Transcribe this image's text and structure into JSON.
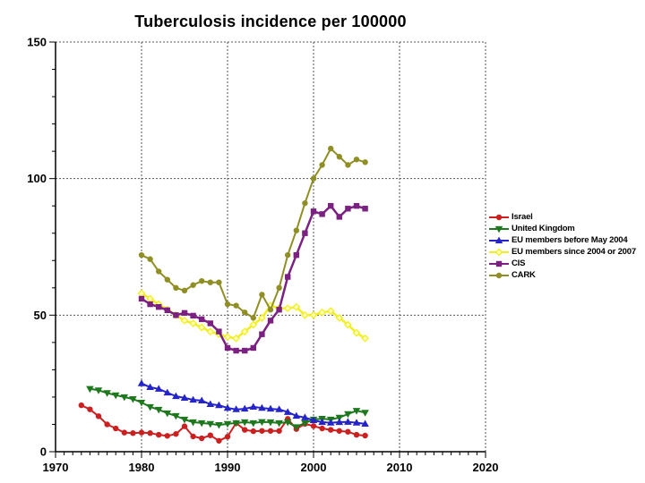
{
  "chart_data": {
    "type": "line",
    "title": "Tuberculosis incidence per 100000",
    "xlabel": "",
    "ylabel": "",
    "xlim": [
      1970,
      2020
    ],
    "ylim": [
      0,
      150
    ],
    "x_major_ticks": [
      1970,
      1980,
      1990,
      2000,
      2010,
      2020
    ],
    "y_major_ticks": [
      0,
      50,
      100,
      150
    ],
    "x_minor_step": 1,
    "y_minor_step": 10,
    "grid": "dashed-at-major-ticks",
    "legend_position": "right",
    "series": [
      {
        "name": "Israel",
        "color": "#cc2020",
        "marker": "circle",
        "line_width": 2,
        "x_start": 1973,
        "x_end": 2006,
        "values": [
          17,
          15.5,
          13,
          10,
          8.5,
          7,
          6.8,
          7,
          6.8,
          6.2,
          5.8,
          6.5,
          9.3,
          5.6,
          4.9,
          6,
          4,
          5.5,
          10.5,
          8,
          7.5,
          7.6,
          7.6,
          7.6,
          12,
          8.3,
          10.2,
          9.4,
          8.5,
          8,
          7.6,
          7.3,
          6.2,
          5.9
        ]
      },
      {
        "name": "United Kingdom",
        "color": "#1e781e",
        "marker": "triangle-down",
        "line_width": 2,
        "x_start": 1974,
        "x_end": 2006,
        "values": [
          23,
          22.5,
          21.5,
          20.7,
          20,
          19.3,
          18,
          16.4,
          15.4,
          14.1,
          13.1,
          11.8,
          10.8,
          10.5,
          10.2,
          9.8,
          10.2,
          10.5,
          10.8,
          10.5,
          10.9,
          10.8,
          10.5,
          10.8,
          9,
          10.5,
          11.8,
          12.1,
          11.8,
          12.5,
          13.8,
          15,
          14.3
        ]
      },
      {
        "name": "EU members before May 2004",
        "color": "#2424c8",
        "marker": "triangle-up",
        "line_width": 2,
        "x_start": 1980,
        "x_end": 2006,
        "values": [
          25,
          23.6,
          23,
          21.6,
          20.3,
          19.7,
          19,
          18.7,
          17.4,
          17,
          16,
          15.5,
          15.7,
          16.4,
          16,
          15.7,
          15.5,
          14.5,
          13.1,
          12.5,
          11.5,
          10.8,
          10.6,
          10.8,
          10.9,
          10.6,
          10.2
        ]
      },
      {
        "name": "EU members since 2004 or 2007",
        "color": "#f2ee20",
        "marker": "diamond",
        "marker_fill": "#ffffc0",
        "line_width": 2.5,
        "x_start": 1980,
        "x_end": 2006,
        "values": [
          58,
          56,
          54,
          52,
          50,
          48,
          47,
          45.5,
          44,
          43,
          42,
          41.5,
          44,
          46.5,
          49,
          53.5,
          52.5,
          52.5,
          53,
          50,
          50,
          51,
          51.5,
          49,
          46.5,
          43.5,
          41.5
        ]
      },
      {
        "name": "CIS",
        "color": "#7b2181",
        "marker": "square",
        "line_width": 2.5,
        "x_start": 1980,
        "x_end": 2006,
        "values": [
          56,
          54,
          53,
          51.8,
          50,
          50.8,
          49.8,
          48.5,
          47,
          44,
          38,
          37,
          37,
          38,
          43,
          48,
          52,
          64,
          72,
          80,
          88,
          87,
          90,
          86,
          89,
          90,
          89
        ]
      },
      {
        "name": "CARK",
        "color": "#8f8f25",
        "marker": "circle",
        "line_width": 2,
        "x_start": 1980,
        "x_end": 2006,
        "values": [
          72,
          70.5,
          66,
          63,
          60,
          59,
          61,
          62.5,
          62,
          62,
          54,
          53.5,
          51,
          49,
          57.5,
          52,
          60,
          72,
          81,
          91,
          100,
          105,
          111,
          108,
          105,
          107,
          106
        ]
      }
    ]
  }
}
